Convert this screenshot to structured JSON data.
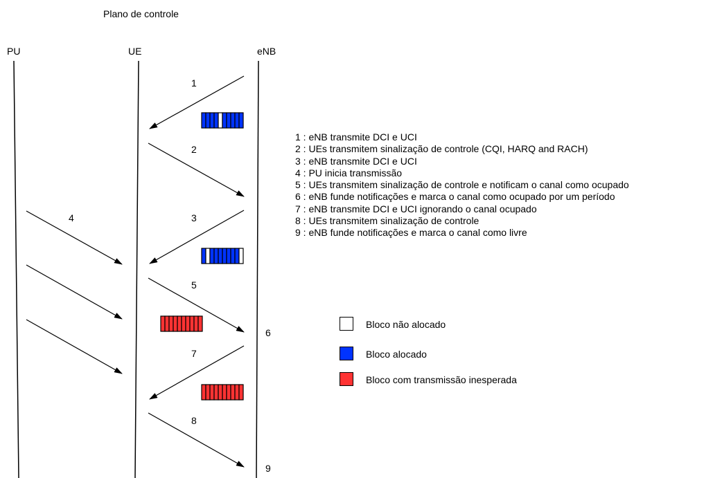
{
  "title": "Plano de controle",
  "entities": [
    "PU",
    "UE",
    "eNB"
  ],
  "step_labels": [
    "1",
    "2",
    "3",
    "4",
    "5",
    "6",
    "7",
    "8",
    "9"
  ],
  "steps": [
    "1 : eNB transmite DCI e UCI",
    "2 : UEs transmitem sinalização de controle (CQI, HARQ and RACH)",
    "3 : eNB transmite DCI e UCI",
    "4 : PU inicia transmissão",
    "5 : UEs transmitem sinalização de controle e notificam o canal como ocupado",
    "6 : eNB funde notificações e marca o canal como ocupado por um período",
    "7 : eNB transmite DCI e UCI ignorando o canal ocupado",
    "8 : UEs transmitem sinalização de controle",
    "9 : eNB funde notificações e marca o canal como livre"
  ],
  "legend": [
    {
      "label": "Bloco não alocado",
      "color": "#ffffff"
    },
    {
      "label": "Bloco alocado",
      "color": "#0033ff"
    },
    {
      "label": "Bloco com transmissão inesperada",
      "color": "#ff3333"
    }
  ],
  "resource_blocks": [
    {
      "step": "1",
      "cells": [
        "A",
        "A",
        "A",
        "A",
        "N",
        "A",
        "A",
        "A",
        "A",
        "A"
      ]
    },
    {
      "step": "3",
      "cells": [
        "A",
        "N",
        "A",
        "A",
        "A",
        "A",
        "A",
        "A",
        "A",
        "N"
      ]
    },
    {
      "step": "5",
      "cells": [
        "U",
        "U",
        "U",
        "U",
        "U",
        "U",
        "U",
        "U",
        "U",
        "U"
      ]
    },
    {
      "step": "7",
      "cells": [
        "U",
        "U",
        "U",
        "U",
        "U",
        "U",
        "U",
        "U",
        "U",
        "U"
      ]
    }
  ],
  "colors": {
    "allocated": "#0033ff",
    "unallocated": "#ffffff",
    "unexpected": "#ff3333",
    "line": "#000000"
  }
}
